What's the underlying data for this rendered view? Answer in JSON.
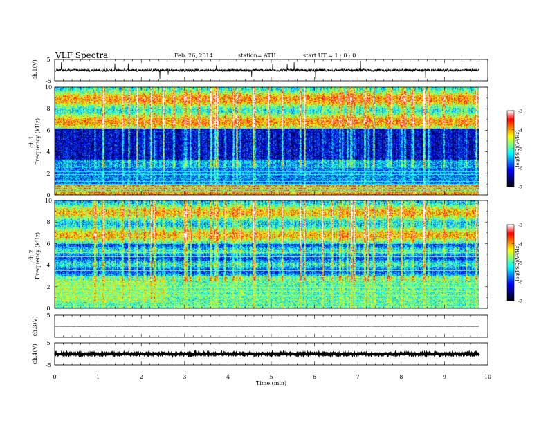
{
  "header": {
    "title": "VLF  Spectra",
    "date": "Feb. 26, 2014",
    "station": "station= ATH",
    "start": "start  UT  =    1  : 0  : 0"
  },
  "chart_data": [
    {
      "type": "line",
      "name": "ch1-waveform",
      "ylabel": "ch.1(V)",
      "ylim": [
        -5,
        5
      ],
      "yticks": [
        "5",
        "-5"
      ],
      "baseline": 0,
      "x_end_min": 9.8,
      "noise_amplitude": 0.6,
      "spike_amplitude": 4.5
    },
    {
      "type": "heatmap",
      "name": "ch1-spectrogram",
      "ylabel_top": "ch.1",
      "ylabel": "Frequency  (kHz)",
      "ylim": [
        0,
        10
      ],
      "yticks": [
        "0",
        "2",
        "4",
        "6",
        "8",
        "10"
      ],
      "xlim_min": [
        0,
        9.8
      ],
      "colorbar": {
        "label": "log(PSD)(V²/Hz)",
        "range": [
          -7,
          -3
        ],
        "ticks": [
          "-3",
          "-4",
          "-5",
          "-6",
          "-7"
        ]
      }
    },
    {
      "type": "heatmap",
      "name": "ch2-spectrogram",
      "ylabel_top": "ch.2",
      "ylabel": "Frequency  (kHz)",
      "ylim": [
        0,
        10
      ],
      "yticks": [
        "0",
        "2",
        "4",
        "6",
        "8",
        "10"
      ],
      "xlim_min": [
        0,
        9.8
      ],
      "colorbar": {
        "label": "log(PSD)(V²/Hz)",
        "range": [
          -7,
          -3
        ],
        "ticks": [
          "-3",
          "-4",
          "-5",
          "-6",
          "-7"
        ]
      }
    },
    {
      "type": "line",
      "name": "ch3-waveform",
      "ylabel": "ch.3(V)",
      "ylim": [
        -5,
        5
      ],
      "yticks": [
        "5"
      ],
      "baseline": 0,
      "x_end_min": 9.8,
      "noise_amplitude": 0.05
    },
    {
      "type": "line",
      "name": "ch4-waveform",
      "ylabel": "ch.4(V)",
      "ylim": [
        -5,
        5
      ],
      "yticks": [
        "5",
        "-5"
      ],
      "baseline": 0,
      "x_end_min": 9.8,
      "noise_amplitude": 0.35
    }
  ],
  "x_axis": {
    "label": "Time  (min)",
    "range": [
      0,
      10
    ],
    "ticks": [
      "0",
      "1",
      "2",
      "3",
      "4",
      "5",
      "6",
      "7",
      "8",
      "9",
      "10"
    ]
  },
  "colors": {
    "colormap": [
      "#000000",
      "#00007f",
      "#0000ff",
      "#0080ff",
      "#00ffff",
      "#80ff80",
      "#ffff00",
      "#ff8000",
      "#ff0000",
      "#ffffff"
    ]
  }
}
